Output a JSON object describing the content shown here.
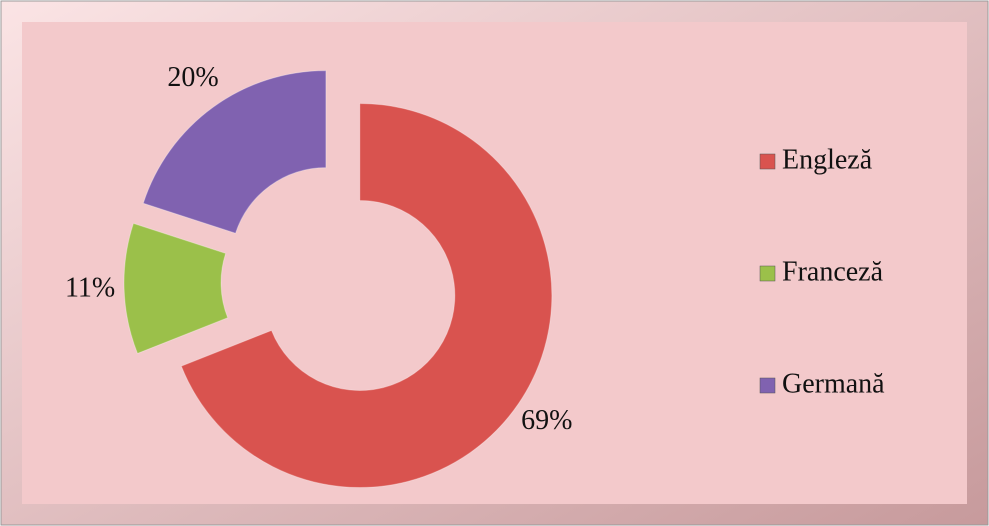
{
  "chart_data": {
    "type": "donut",
    "categories": [
      "Engleză",
      "Franceză",
      "Germană"
    ],
    "values": [
      69,
      11,
      20
    ],
    "value_labels": [
      "69%",
      "11%",
      "20%"
    ],
    "colors": [
      "#d9534f",
      "#9bc04a",
      "#8062b0"
    ],
    "legend": "right"
  }
}
